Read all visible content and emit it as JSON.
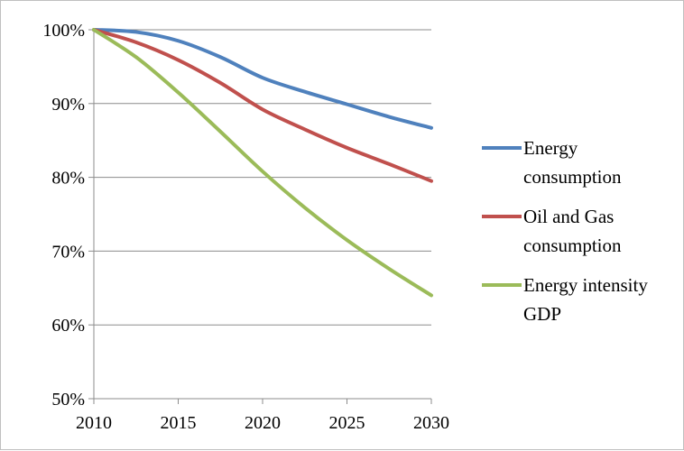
{
  "chart_data": {
    "type": "line",
    "title": "",
    "xlabel": "",
    "ylabel": "",
    "x": [
      2010,
      2012.5,
      2015,
      2017.5,
      2020,
      2022.5,
      2025,
      2027.5,
      2030
    ],
    "x_ticks": [
      "2010",
      "2015",
      "2020",
      "2025",
      "2030"
    ],
    "y_ticks": [
      "50%",
      "60%",
      "70%",
      "80%",
      "90%",
      "100%"
    ],
    "xlim": [
      2010,
      2030
    ],
    "ylim": [
      50,
      100
    ],
    "grid": "horizontal",
    "legend_position": "right",
    "series": [
      {
        "name": "Energy consumption",
        "legend_lines": [
          "Energy",
          "consumption"
        ],
        "color": "#4f81bd",
        "values": [
          100,
          99.7,
          98.5,
          96.3,
          93.5,
          91.6,
          89.9,
          88.2,
          86.7
        ]
      },
      {
        "name": "Oil and Gas consumption",
        "legend_lines": [
          "Oil and Gas",
          "consumption"
        ],
        "color": "#c0504d",
        "values": [
          100,
          98.3,
          95.9,
          92.8,
          89.2,
          86.5,
          84.0,
          81.8,
          79.5
        ]
      },
      {
        "name": "Energy intensity GDP",
        "legend_lines": [
          "Energy intensity",
          "GDP"
        ],
        "color": "#9bbb59",
        "values": [
          100,
          96.3,
          91.5,
          86.2,
          80.8,
          75.9,
          71.5,
          67.6,
          64.0
        ]
      }
    ]
  }
}
